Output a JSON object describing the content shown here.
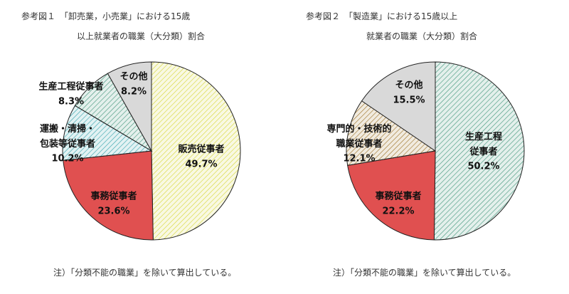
{
  "chart_data": [
    {
      "type": "pie",
      "title": "参考図１　「卸売業，小売業」における15歳",
      "subtitle": "以上就業者の職業（大分類）割合",
      "categories": [
        "販売従事者",
        "事務従事者",
        "運搬・清掃・\n包装等従事者",
        "生産工程従事者",
        "その他"
      ],
      "values": [
        49.7,
        23.6,
        10.2,
        8.3,
        8.2
      ],
      "value_labels": [
        "49.7%",
        "23.6%",
        "10.2%",
        "8.3%",
        "8.2%"
      ],
      "colors": [
        "#d8d840",
        "#e05050",
        "#40a8b0",
        "#4a9a80",
        "#d9d9d9"
      ],
      "hatch": [
        true,
        false,
        true,
        true,
        false
      ],
      "note": "注）「分類不能の職業」を除いて算出している。"
    },
    {
      "type": "pie",
      "title": "参考図２　「製造業」における15歳以上",
      "subtitle": "就業者の職業（大分類）割合",
      "categories": [
        "生産工程\n従事者",
        "事務従事者",
        "専門的・技術的\n職業従事者",
        "その他"
      ],
      "values": [
        50.2,
        22.2,
        12.1,
        15.5
      ],
      "value_labels": [
        "50.2%",
        "22.2%",
        "12.1%",
        "15.5%"
      ],
      "colors": [
        "#4a9a80",
        "#e05050",
        "#a07830",
        "#d9d9d9"
      ],
      "hatch": [
        true,
        false,
        true,
        false
      ],
      "note": "注）「分類不能の職業」を除いて算出している。"
    }
  ]
}
